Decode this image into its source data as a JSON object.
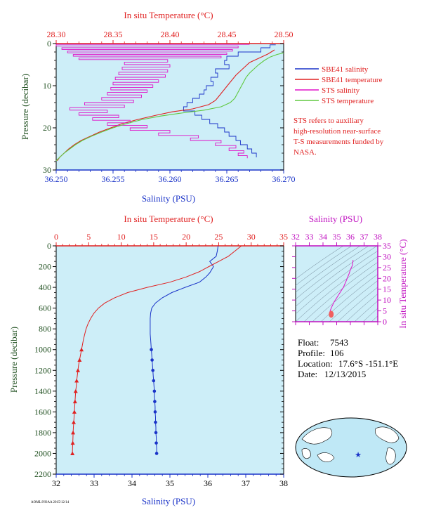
{
  "chart_data": [
    {
      "type": "line",
      "title": "",
      "x_top_label": "In situ Temperature (°C)",
      "x_top_lim": [
        28.3,
        28.5
      ],
      "x_top_ticks": [
        "28.30",
        "28.35",
        "28.40",
        "28.45",
        "28.50"
      ],
      "x_bottom_label": "Salinity (PSU)",
      "x_bottom_lim": [
        36.25,
        36.27
      ],
      "x_bottom_ticks": [
        "36.250",
        "36.255",
        "36.260",
        "36.265",
        "36.270"
      ],
      "ylabel": "Pressure (decibar)",
      "ylim": [
        0,
        30
      ],
      "y_ticks": [
        "0",
        "10",
        "20",
        "30"
      ],
      "grid": false,
      "series": [
        {
          "name": "SBE41 salinity",
          "color": "#1a33c8",
          "axis": "bottom",
          "points": [
            [
              36.2693,
              0.3
            ],
            [
              36.2688,
              1.0
            ],
            [
              36.268,
              2.0
            ],
            [
              36.266,
              3.0
            ],
            [
              36.265,
              4.0
            ],
            [
              36.2648,
              5.0
            ],
            [
              36.2652,
              6.0
            ],
            [
              36.264,
              7.0
            ],
            [
              36.2642,
              8.0
            ],
            [
              36.2636,
              9.0
            ],
            [
              36.2638,
              10.0
            ],
            [
              36.2632,
              11.0
            ],
            [
              36.263,
              12.0
            ],
            [
              36.2626,
              13.0
            ],
            [
              36.262,
              14.0
            ],
            [
              36.2615,
              15.0
            ],
            [
              36.2612,
              16.0
            ],
            [
              36.2622,
              17.0
            ],
            [
              36.2628,
              18.0
            ],
            [
              36.2635,
              19.0
            ],
            [
              36.2642,
              20.0
            ],
            [
              36.2648,
              21.0
            ],
            [
              36.2652,
              22.0
            ],
            [
              36.2658,
              23.0
            ],
            [
              36.2662,
              24.0
            ],
            [
              36.2668,
              25.0
            ],
            [
              36.2672,
              26.0
            ],
            [
              36.2676,
              27.0
            ]
          ]
        },
        {
          "name": "SBE41 temperature",
          "color": "#e02020",
          "axis": "top",
          "points": [
            [
              28.492,
              1.5
            ],
            [
              28.486,
              2.5
            ],
            [
              28.478,
              3.5
            ],
            [
              28.47,
              4.5
            ],
            [
              28.466,
              5.5
            ],
            [
              28.462,
              6.5
            ],
            [
              28.458,
              7.5
            ],
            [
              28.455,
              8.5
            ],
            [
              28.452,
              9.5
            ],
            [
              28.449,
              10.5
            ],
            [
              28.446,
              11.5
            ],
            [
              28.443,
              12.5
            ],
            [
              28.44,
              13.5
            ],
            [
              28.434,
              14.5
            ],
            [
              28.42,
              15.5
            ],
            [
              28.402,
              16.2
            ],
            [
              28.388,
              17.0
            ],
            [
              28.372,
              18.0
            ],
            [
              28.358,
              19.0
            ],
            [
              28.348,
              20.0
            ],
            [
              28.338,
              21.0
            ],
            [
              28.33,
              22.0
            ],
            [
              28.322,
              23.0
            ],
            [
              28.316,
              24.0
            ],
            [
              28.311,
              25.0
            ],
            [
              28.307,
              26.0
            ],
            [
              28.303,
              27.0
            ],
            [
              28.301,
              27.8
            ]
          ]
        },
        {
          "name": "STS salinity",
          "color": "#e010c8",
          "axis": "bottom",
          "points": [
            [
              36.267,
              0.2
            ],
            [
              36.25,
              0.6
            ],
            [
              36.266,
              1.0
            ],
            [
              36.2505,
              1.4
            ],
            [
              36.2655,
              1.8
            ],
            [
              36.251,
              2.2
            ],
            [
              36.265,
              2.6
            ],
            [
              36.2515,
              3.0
            ],
            [
              36.2645,
              3.4
            ],
            [
              36.252,
              3.8
            ],
            [
              36.2598,
              4.4
            ],
            [
              36.256,
              5.0
            ],
            [
              36.26,
              5.6
            ],
            [
              36.2558,
              6.2
            ],
            [
              36.2598,
              6.8
            ],
            [
              36.2555,
              7.4
            ],
            [
              36.2596,
              8.0
            ],
            [
              36.2552,
              8.6
            ],
            [
              36.259,
              9.2
            ],
            [
              36.255,
              9.8
            ],
            [
              36.2585,
              10.4
            ],
            [
              36.2548,
              11.0
            ],
            [
              36.258,
              11.6
            ],
            [
              36.2545,
              12.2
            ],
            [
              36.2575,
              12.8
            ],
            [
              36.254,
              13.4
            ],
            [
              36.2568,
              14.0
            ],
            [
              36.2525,
              14.6
            ],
            [
              36.256,
              15.2
            ],
            [
              36.2512,
              15.8
            ],
            [
              36.2545,
              16.4
            ],
            [
              36.252,
              17.0
            ],
            [
              36.2555,
              17.6
            ],
            [
              36.2532,
              18.2
            ],
            [
              36.2565,
              18.8
            ],
            [
              36.2545,
              19.4
            ],
            [
              36.258,
              20.0
            ],
            [
              36.2565,
              20.6
            ],
            [
              36.26,
              21.2
            ],
            [
              36.259,
              21.8
            ],
            [
              36.2625,
              22.4
            ],
            [
              36.2618,
              23.0
            ],
            [
              36.2645,
              23.6
            ],
            [
              36.264,
              24.2
            ],
            [
              36.2658,
              24.8
            ],
            [
              36.2652,
              25.4
            ],
            [
              36.2665,
              26.0
            ],
            [
              36.266,
              26.6
            ],
            [
              36.2668,
              27.2
            ]
          ]
        },
        {
          "name": "STS temperature",
          "color": "#60c840",
          "axis": "top",
          "points": [
            [
              28.5,
              2.2
            ],
            [
              28.494,
              2.6
            ],
            [
              28.488,
              3.2
            ],
            [
              28.483,
              4.0
            ],
            [
              28.478,
              5.0
            ],
            [
              28.474,
              6.0
            ],
            [
              28.47,
              7.0
            ],
            [
              28.467,
              8.0
            ],
            [
              28.465,
              9.0
            ],
            [
              28.463,
              10.0
            ],
            [
              28.461,
              11.0
            ],
            [
              28.459,
              12.0
            ],
            [
              28.457,
              13.0
            ],
            [
              28.453,
              14.0
            ],
            [
              28.445,
              15.0
            ],
            [
              28.43,
              15.8
            ],
            [
              28.41,
              16.5
            ],
            [
              28.392,
              17.2
            ],
            [
              28.376,
              18.0
            ],
            [
              28.362,
              19.0
            ],
            [
              28.35,
              20.0
            ],
            [
              28.34,
              21.0
            ],
            [
              28.331,
              22.0
            ],
            [
              28.323,
              23.0
            ],
            [
              28.317,
              24.0
            ],
            [
              28.312,
              25.0
            ],
            [
              28.307,
              26.0
            ],
            [
              28.303,
              27.0
            ],
            [
              28.3,
              27.8
            ]
          ]
        }
      ],
      "legend_placement": "right",
      "note": "STS refers to auxiliary high-resolution near-surface T-S measurements funded by NASA."
    },
    {
      "type": "line",
      "title": "",
      "x_top_label": "In situ Temperature (°C)",
      "x_top_lim": [
        0,
        35
      ],
      "x_top_ticks": [
        "0",
        "5",
        "10",
        "15",
        "20",
        "25",
        "30",
        "35"
      ],
      "x_bottom_label": "Salinity (PSU)",
      "x_bottom_lim": [
        32,
        38
      ],
      "x_bottom_ticks": [
        "32",
        "33",
        "34",
        "35",
        "36",
        "37",
        "38"
      ],
      "ylabel": "Pressure (decibar)",
      "ylim": [
        0,
        2200
      ],
      "y_ticks": [
        "0",
        "200",
        "400",
        "600",
        "800",
        "1000",
        "1200",
        "1400",
        "1600",
        "1800",
        "2000",
        "2200"
      ],
      "grid": false,
      "series": [
        {
          "name": "salinity",
          "color": "#1a33c8",
          "axis": "bottom",
          "marker": "circle",
          "marker_from": 1000,
          "points": [
            [
              36.27,
              0
            ],
            [
              36.25,
              50
            ],
            [
              36.22,
              100
            ],
            [
              36.05,
              150
            ],
            [
              36.15,
              200
            ],
            [
              36.05,
              260
            ],
            [
              35.95,
              300
            ],
            [
              35.78,
              350
            ],
            [
              35.4,
              400
            ],
            [
              35.05,
              450
            ],
            [
              34.8,
              500
            ],
            [
              34.62,
              550
            ],
            [
              34.52,
              600
            ],
            [
              34.49,
              650
            ],
            [
              34.48,
              700
            ],
            [
              34.48,
              750
            ],
            [
              34.48,
              800
            ],
            [
              34.48,
              850
            ],
            [
              34.49,
              900
            ],
            [
              34.5,
              950
            ],
            [
              34.51,
              1000
            ],
            [
              34.52,
              1050
            ],
            [
              34.53,
              1100
            ],
            [
              34.54,
              1150
            ],
            [
              34.55,
              1200
            ],
            [
              34.56,
              1250
            ],
            [
              34.57,
              1300
            ],
            [
              34.58,
              1350
            ],
            [
              34.59,
              1400
            ],
            [
              34.59,
              1450
            ],
            [
              34.6,
              1500
            ],
            [
              34.61,
              1550
            ],
            [
              34.61,
              1600
            ],
            [
              34.62,
              1650
            ],
            [
              34.62,
              1700
            ],
            [
              34.63,
              1750
            ],
            [
              34.63,
              1800
            ],
            [
              34.64,
              1850
            ],
            [
              34.64,
              1900
            ],
            [
              34.65,
              1950
            ],
            [
              34.65,
              2000
            ]
          ]
        },
        {
          "name": "temperature",
          "color": "#e02020",
          "axis": "top",
          "marker": "triangle",
          "marker_from": 1000,
          "points": [
            [
              28.5,
              0
            ],
            [
              27.5,
              50
            ],
            [
              26.5,
              100
            ],
            [
              25.0,
              150
            ],
            [
              23.5,
              200
            ],
            [
              22.0,
              250
            ],
            [
              20.0,
              300
            ],
            [
              17.5,
              350
            ],
            [
              14.0,
              400
            ],
            [
              11.0,
              450
            ],
            [
              9.0,
              500
            ],
            [
              7.5,
              550
            ],
            [
              6.5,
              600
            ],
            [
              5.8,
              650
            ],
            [
              5.3,
              700
            ],
            [
              4.9,
              750
            ],
            [
              4.6,
              800
            ],
            [
              4.4,
              850
            ],
            [
              4.2,
              900
            ],
            [
              4.05,
              950
            ],
            [
              3.9,
              1000
            ],
            [
              3.75,
              1050
            ],
            [
              3.6,
              1100
            ],
            [
              3.45,
              1150
            ],
            [
              3.35,
              1200
            ],
            [
              3.25,
              1250
            ],
            [
              3.15,
              1300
            ],
            [
              3.1,
              1350
            ],
            [
              3.0,
              1400
            ],
            [
              2.95,
              1450
            ],
            [
              2.9,
              1500
            ],
            [
              2.85,
              1550
            ],
            [
              2.8,
              1600
            ],
            [
              2.75,
              1650
            ],
            [
              2.7,
              1700
            ],
            [
              2.65,
              1750
            ],
            [
              2.6,
              1800
            ],
            [
              2.58,
              1850
            ],
            [
              2.55,
              1900
            ],
            [
              2.52,
              1950
            ],
            [
              2.5,
              2000
            ]
          ]
        }
      ]
    },
    {
      "type": "scatter",
      "title": "",
      "xlabel": "Salinity (PSU)",
      "x_ticks": [
        "32",
        "33",
        "34",
        "35",
        "36",
        "37",
        "38"
      ],
      "xlim": [
        32,
        38
      ],
      "ylabel": "In situ Temperature (°C)",
      "y_ticks": [
        "0",
        "5",
        "10",
        "15",
        "20",
        "25",
        "30",
        "35"
      ],
      "ylim": [
        0,
        35
      ],
      "series": [
        {
          "name": "profile",
          "color": "#e010c8",
          "points": [
            [
              36.2,
              28.5
            ],
            [
              36.15,
              26
            ],
            [
              36.0,
              24
            ],
            [
              35.9,
              22
            ],
            [
              35.7,
              19
            ],
            [
              35.5,
              16
            ],
            [
              35.2,
              13
            ],
            [
              35.0,
              11
            ],
            [
              34.8,
              9
            ],
            [
              34.65,
              7
            ],
            [
              34.55,
              5.5
            ],
            [
              34.5,
              4.5
            ],
            [
              34.55,
              3.5
            ],
            [
              34.6,
              2.8
            ]
          ]
        }
      ]
    }
  ],
  "info": {
    "float_label": "Float:",
    "float_value": "7543",
    "profile_label": "Profile:",
    "profile_value": "106",
    "location_label": "Location:",
    "location_value": "17.6°S  -151.1°E",
    "date_label": "Date:",
    "date_value": "12/13/2015"
  },
  "colors": {
    "plot_bg": "#cdeef8",
    "temp_axis": "#e02020",
    "sal_axis": "#1a33c8",
    "pressure_axis": "#205020",
    "ts_axis": "#c010c0"
  },
  "footer": "AOML/NOAA 2015/12/14"
}
